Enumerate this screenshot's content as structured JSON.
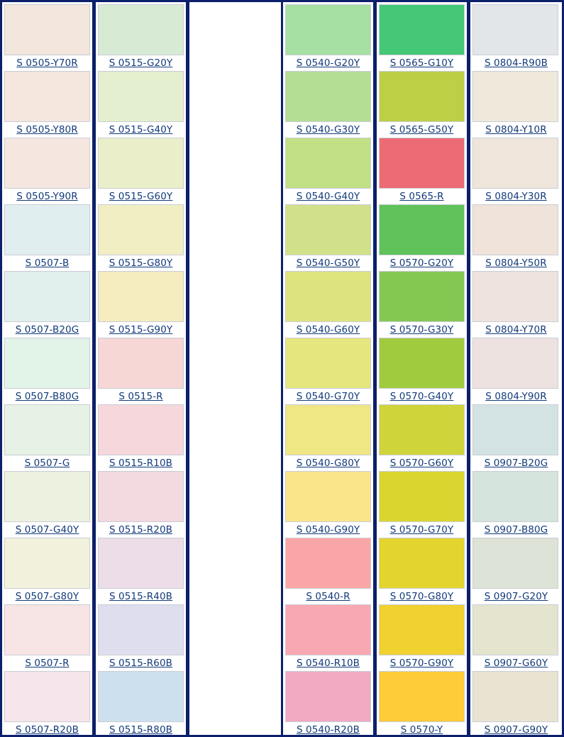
{
  "columns": [
    {
      "cells": [
        {
          "label": "S 0505-Y70R",
          "color": "#f3e6dc"
        },
        {
          "label": "S 0505-Y80R",
          "color": "#f5e6de"
        },
        {
          "label": "S 0505-Y90R",
          "color": "#f6e6e0"
        },
        {
          "label": "S 0507-B",
          "color": "#e1eef0"
        },
        {
          "label": "S 0507-B20G",
          "color": "#e1f0ed"
        },
        {
          "label": "S 0507-B80G",
          "color": "#e2f3e8"
        },
        {
          "label": "S 0507-G",
          "color": "#e6f2e6"
        },
        {
          "label": "S 0507-G40Y",
          "color": "#ecf2df"
        },
        {
          "label": "S 0507-G80Y",
          "color": "#f2f2dc"
        },
        {
          "label": "S 0507-R",
          "color": "#f7e4e4"
        },
        {
          "label": "S 0507-R20B",
          "color": "#f6e5ea"
        }
      ]
    },
    {
      "cells": [
        {
          "label": "S 0515-G20Y",
          "color": "#d6ead4"
        },
        {
          "label": "S 0515-G40Y",
          "color": "#e3efcf"
        },
        {
          "label": "S 0515-G60Y",
          "color": "#eaefc9"
        },
        {
          "label": "S 0515-G80Y",
          "color": "#f1eec3"
        },
        {
          "label": "S 0515-G90Y",
          "color": "#f5ecc0"
        },
        {
          "label": "S 0515-R",
          "color": "#f7d6d6"
        },
        {
          "label": "S 0515-R10B",
          "color": "#f6d8dc"
        },
        {
          "label": "S 0515-R20B",
          "color": "#f3d9e0"
        },
        {
          "label": "S 0515-R40B",
          "color": "#ecdde9"
        },
        {
          "label": "S 0515-R60B",
          "color": "#dedeee"
        },
        {
          "label": "S 0515-R80B",
          "color": "#cde0ee"
        }
      ]
    },
    {
      "cells": []
    },
    {
      "cells": [
        {
          "label": "S 0540-G20Y",
          "color": "#a6e0a3"
        },
        {
          "label": "S 0540-G30Y",
          "color": "#b3de94"
        },
        {
          "label": "S 0540-G40Y",
          "color": "#c1e085"
        },
        {
          "label": "S 0540-G50Y",
          "color": "#d1e18a"
        },
        {
          "label": "S 0540-G60Y",
          "color": "#dde47e"
        },
        {
          "label": "S 0540-G70Y",
          "color": "#e6e67f"
        },
        {
          "label": "S 0540-G80Y",
          "color": "#efe684"
        },
        {
          "label": "S 0540-G90Y",
          "color": "#fae58a"
        },
        {
          "label": "S 0540-R",
          "color": "#fba6a6"
        },
        {
          "label": "S 0540-R10B",
          "color": "#f8a8b3"
        },
        {
          "label": "S 0540-R20B",
          "color": "#f2a9c2"
        }
      ]
    },
    {
      "cells": [
        {
          "label": "S 0565-G10Y",
          "color": "#44c777"
        },
        {
          "label": "S 0565-G50Y",
          "color": "#bdcf45"
        },
        {
          "label": "S 0565-R",
          "color": "#ec6b74"
        },
        {
          "label": "S 0570-G20Y",
          "color": "#5fc25a"
        },
        {
          "label": "S 0570-G30Y",
          "color": "#84c852"
        },
        {
          "label": "S 0570-G40Y",
          "color": "#a0cb3e"
        },
        {
          "label": "S 0570-G60Y",
          "color": "#cfd43a"
        },
        {
          "label": "S 0570-G70Y",
          "color": "#dbd62f"
        },
        {
          "label": "S 0570-G80Y",
          "color": "#e4d52e"
        },
        {
          "label": "S 0570-G90Y",
          "color": "#f0d130"
        },
        {
          "label": "S 0570-Y",
          "color": "#fdcc38"
        }
      ]
    },
    {
      "cells": [
        {
          "label": "S 0804-R90B",
          "color": "#e3e6e9"
        },
        {
          "label": "S 0804-Y10R",
          "color": "#efe9db"
        },
        {
          "label": "S 0804-Y30R",
          "color": "#efe5da"
        },
        {
          "label": "S 0804-Y50R",
          "color": "#efe3da"
        },
        {
          "label": "S 0804-Y70R",
          "color": "#eee3de"
        },
        {
          "label": "S 0804-Y90R",
          "color": "#eee2e1"
        },
        {
          "label": "S 0907-B20G",
          "color": "#d3e3e3"
        },
        {
          "label": "S 0907-B80G",
          "color": "#d5e4dc"
        },
        {
          "label": "S 0907-G20Y",
          "color": "#dde3d6"
        },
        {
          "label": "S 0907-G60Y",
          "color": "#e4e4cf"
        },
        {
          "label": "S 0907-G90Y",
          "color": "#e9e3d1"
        }
      ]
    }
  ]
}
